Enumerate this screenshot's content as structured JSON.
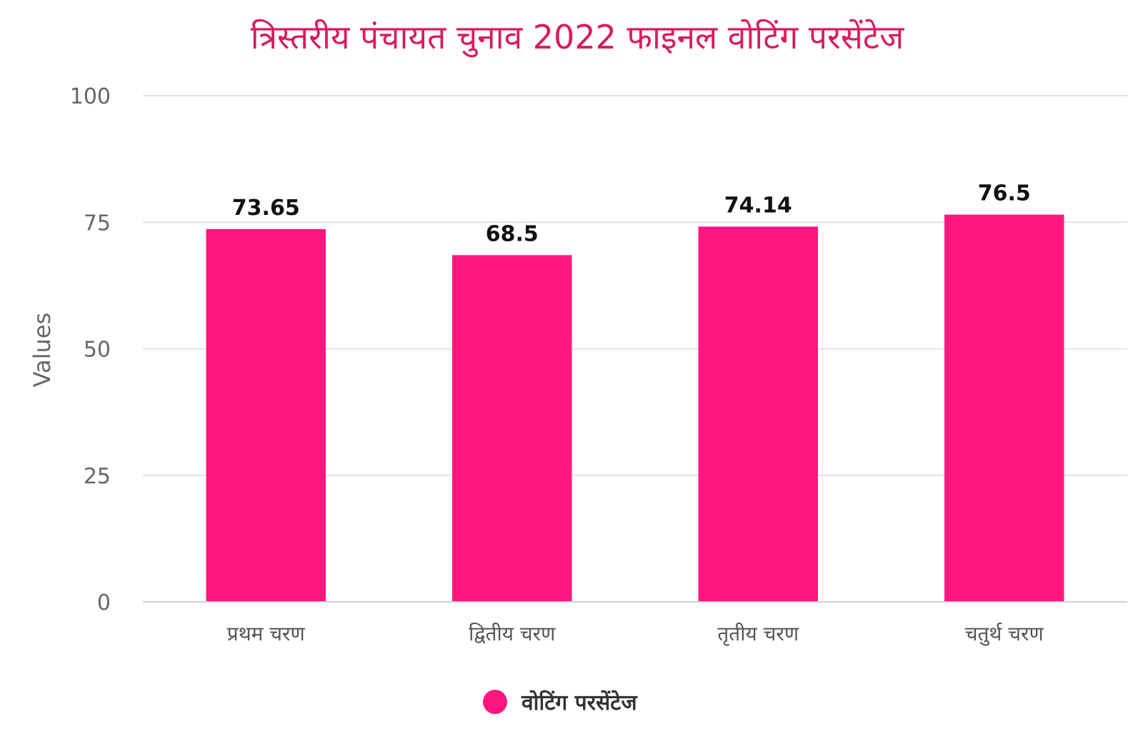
{
  "chart_data": {
    "type": "bar",
    "title": "त्रिस्तरीय पंचायत चुनाव 2022 फाइनल वोटिंग परसेंटेज",
    "xlabel": "",
    "ylabel": "Values",
    "categories": [
      "प्रथम चरण",
      "द्वितीय चरण",
      "तृतीय चरण",
      "चतुर्थ चरण"
    ],
    "series": [
      {
        "name": "वोटिंग परसेंटेज",
        "values": [
          73.65,
          68.5,
          74.14,
          76.5
        ],
        "color": "#ff1680"
      }
    ],
    "data_labels": [
      "73.65",
      "68.5",
      "74.14",
      "76.5"
    ],
    "ylim": [
      0,
      100
    ],
    "yticks": [
      0,
      25,
      50,
      75,
      100
    ],
    "grid": true,
    "legend": "bottom-center",
    "title_color": "#d81b60"
  }
}
